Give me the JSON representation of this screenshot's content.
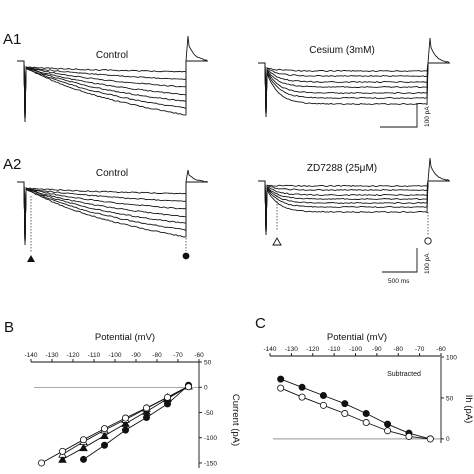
{
  "panels": {
    "a1": {
      "label": "A1",
      "left_title": "Control",
      "right_title": "Cesium (3mM)"
    },
    "a2": {
      "label": "A2",
      "left_title": "Control",
      "right_title": "ZD7288 (25μM)"
    },
    "b": {
      "label": "B"
    },
    "c": {
      "label": "C"
    }
  },
  "scale_bars": {
    "current": "100 pA",
    "current_a2": "100 pA",
    "time": "500 ms"
  },
  "chart_data": [
    {
      "type": "line",
      "panel": "B",
      "xlabel": "Potential (mV)",
      "ylabel": "Current (pA)",
      "xlim": [
        -140,
        -60
      ],
      "ylim": [
        -160,
        50
      ],
      "x_ticks": [
        -140,
        -130,
        -120,
        -110,
        -100,
        -90,
        -80,
        -70,
        -60
      ],
      "y_ticks": [
        50,
        0,
        -50,
        -100,
        -150
      ],
      "series": [
        {
          "marker": "filled-triangle",
          "x": [
            -125,
            -115,
            -105,
            -95,
            -85,
            -75,
            -65
          ],
          "y": [
            -143,
            -120,
            -96,
            -72,
            -48,
            -23,
            2
          ]
        },
        {
          "marker": "filled-circle",
          "x": [
            -115,
            -105,
            -95,
            -85,
            -75,
            -65
          ],
          "y": [
            -143,
            -115,
            -85,
            -60,
            -33,
            4
          ]
        },
        {
          "marker": "open-triangle",
          "x": [
            -125,
            -115,
            -105,
            -95,
            -85,
            -75,
            -65
          ],
          "y": [
            -133,
            -108,
            -85,
            -64,
            -42,
            -20,
            2
          ]
        },
        {
          "marker": "open-circle",
          "x": [
            -135,
            -125,
            -115,
            -105,
            -95,
            -85,
            -75,
            -65
          ],
          "y": [
            -150,
            -127,
            -104,
            -82,
            -61,
            -41,
            -20,
            1
          ]
        }
      ]
    },
    {
      "type": "line",
      "panel": "C",
      "xlabel": "Potential (mV)",
      "ylabel": "Ih (pA)",
      "annotation": "Subtracted",
      "xlim": [
        -140,
        -60
      ],
      "ylim": [
        -5,
        100
      ],
      "x_ticks": [
        -140,
        -130,
        -120,
        -110,
        -100,
        -90,
        -80,
        -70,
        -60
      ],
      "y_ticks": [
        100,
        50,
        0
      ],
      "series": [
        {
          "marker": "filled-circle",
          "x": [
            -135,
            -125,
            -115,
            -105,
            -95,
            -85,
            -75,
            -65
          ],
          "y": [
            73,
            63,
            53,
            43,
            31,
            18,
            7,
            0
          ]
        },
        {
          "marker": "open-circle",
          "x": [
            -135,
            -125,
            -115,
            -105,
            -95,
            -85,
            -75,
            -65
          ],
          "y": [
            62,
            51,
            41,
            31,
            20,
            10,
            3,
            0
          ]
        }
      ]
    }
  ]
}
